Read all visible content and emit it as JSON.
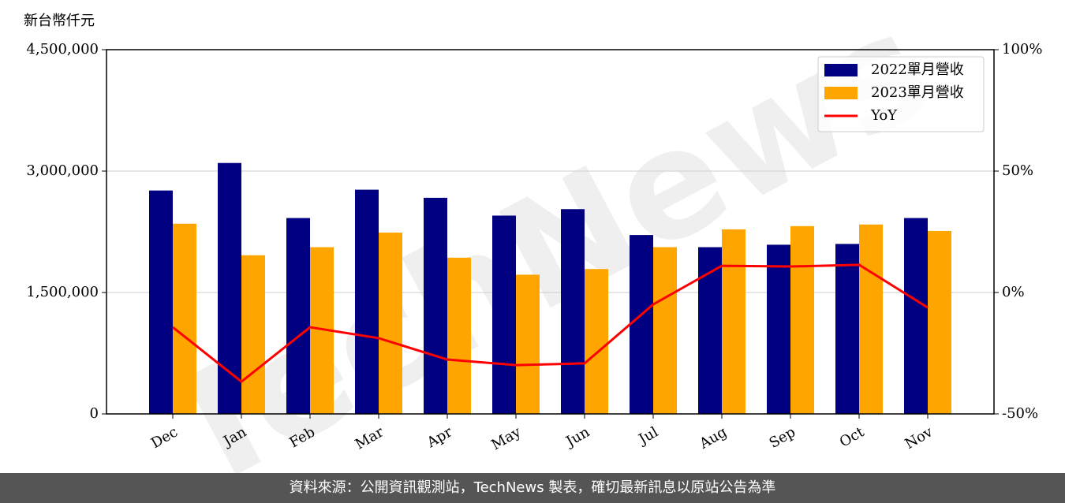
{
  "chart_data": {
    "type": "bar-line",
    "y_label": "新台幣仟元",
    "watermark": "TechNews",
    "source": "資料來源：公開資訊觀測站，TechNews 製表，確切最新訊息以原站公告為準",
    "categories": [
      "Dec",
      "Jan",
      "Feb",
      "Mar",
      "Apr",
      "May",
      "Jun",
      "Jul",
      "Aug",
      "Sep",
      "Oct",
      "Nov"
    ],
    "series": [
      {
        "name": "2022單月營收",
        "type": "bar",
        "color": "#000080",
        "values": [
          2760000,
          3100000,
          2420000,
          2770000,
          2670000,
          2450000,
          2530000,
          2210000,
          2060000,
          2090000,
          2100000,
          2420000
        ]
      },
      {
        "name": "2023單月營收",
        "type": "bar",
        "color": "#ffa500",
        "values": [
          2350000,
          1960000,
          2060000,
          2240000,
          1930000,
          1720000,
          1790000,
          2060000,
          2280000,
          2320000,
          2340000,
          2260000
        ]
      },
      {
        "name": "YoY",
        "type": "line",
        "axis": "y2",
        "color": "#ff0000",
        "values": [
          -14.3,
          -36.7,
          -14.3,
          -18.8,
          -27.6,
          -29.9,
          -29.2,
          -4.9,
          11.0,
          10.7,
          11.4,
          -6.2
        ]
      }
    ],
    "ylim": [
      0,
      4500000
    ],
    "yticks": [
      {
        "value": 0,
        "label": "0"
      },
      {
        "value": 1500000,
        "label": "1,500,000"
      },
      {
        "value": 3000000,
        "label": "3,000,000"
      },
      {
        "value": 4500000,
        "label": "4,500,000"
      }
    ],
    "y2lim": [
      -50,
      100
    ],
    "y2ticks": [
      {
        "value": -50,
        "label": "-50%"
      },
      {
        "value": 0,
        "label": "0%"
      },
      {
        "value": 50,
        "label": "50%"
      },
      {
        "value": 100,
        "label": "100%"
      }
    ],
    "grid": true,
    "legend": "upper right"
  }
}
